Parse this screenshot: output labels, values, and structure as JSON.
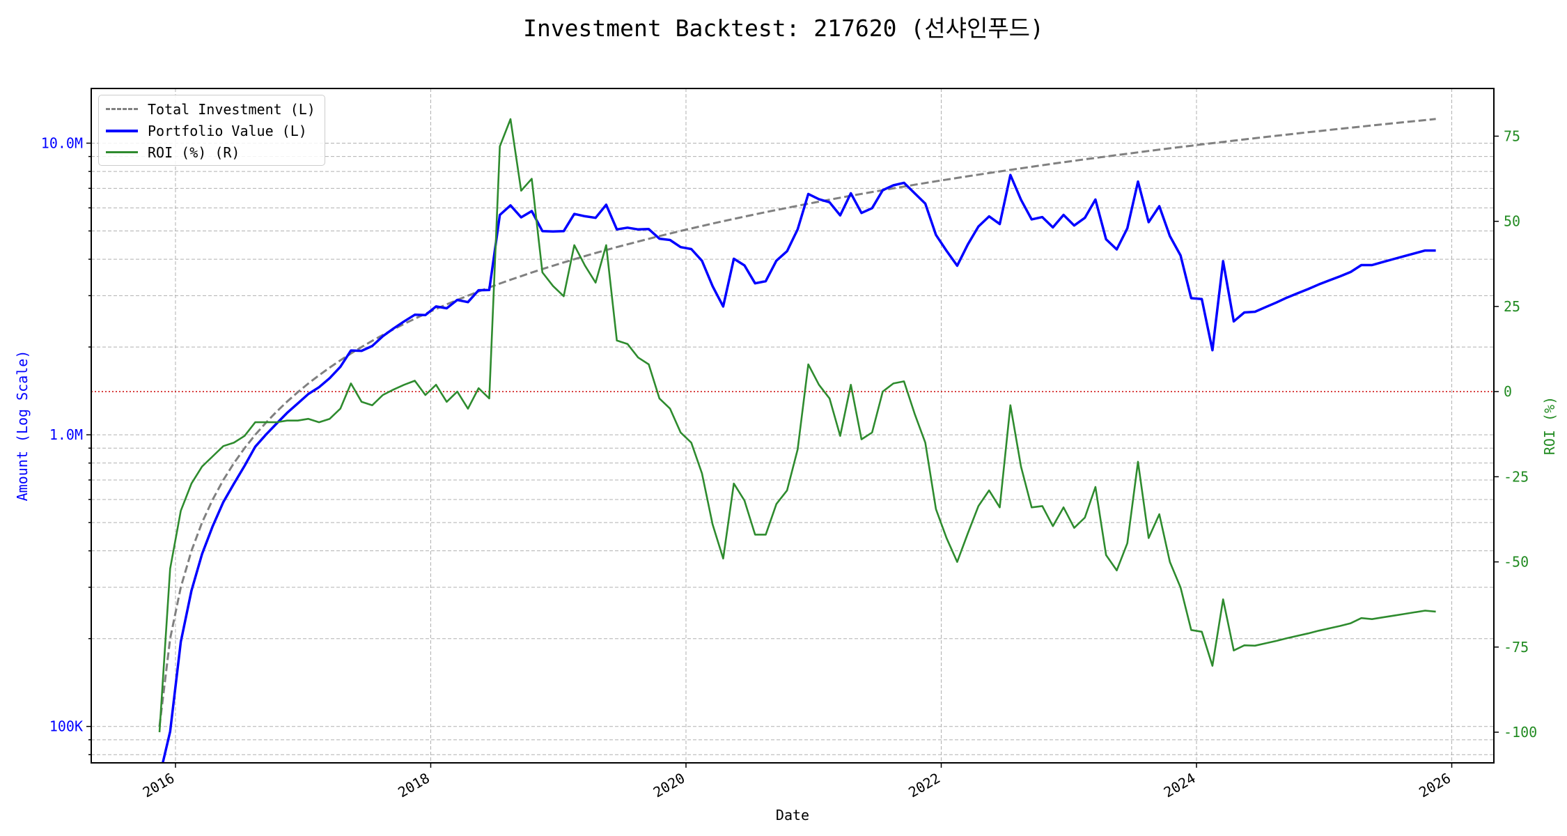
{
  "chart_data": {
    "type": "line",
    "title": "Investment Backtest: 217620 (선샤인푸드)",
    "xlabel": "Date",
    "ylabel_left": "Amount (Log Scale)",
    "ylabel_right": "ROI (%)",
    "x_start": "2015-11",
    "x_frequency": "monthly",
    "x_range_years": [
      2015.34,
      2026.33
    ],
    "x_ticks": [
      "2016",
      "2018",
      "2020",
      "2022",
      "2024",
      "2026"
    ],
    "y_left_scale": "log",
    "y_left_range": [
      75000,
      15400000
    ],
    "y_left_ticks": [
      {
        "value": 100000,
        "label": "100K"
      },
      {
        "value": 1000000,
        "label": "1.0M"
      },
      {
        "value": 10000000,
        "label": "10.0M"
      }
    ],
    "y_right_range": [
      -109,
      89
    ],
    "y_right_ticks": [
      "75",
      "50",
      "25",
      "0",
      "-25",
      "-50",
      "-75",
      "-100"
    ],
    "grid": true,
    "reference_line": {
      "axis": "right",
      "value": 0,
      "color": "#cc0000",
      "style": "dotted"
    },
    "legend_placement": "top-left",
    "series": [
      {
        "name": "Total Investment (L)",
        "axis": "left",
        "color": "#808080",
        "style": "dashed",
        "monthly_increment": 100000
      },
      {
        "name": "Portfolio Value (L)",
        "axis": "left",
        "color": "#0000ff",
        "style": "solid",
        "derived": "total_investment * (1 + roi/100)"
      },
      {
        "name": "ROI (%) (R)",
        "axis": "right",
        "color": "#2e8b2e",
        "style": "solid",
        "values": [
          -100,
          -52,
          -35,
          -27,
          -22,
          -19,
          -16,
          -15,
          -13,
          -9,
          -9,
          -9,
          -8.5,
          -8.5,
          -8,
          -9,
          -8,
          -5,
          2.4,
          -3,
          -4,
          -1,
          0.6,
          2,
          3.2,
          -1,
          2,
          -3,
          0,
          -5,
          1,
          -2,
          72,
          80,
          59,
          62.5,
          35,
          31,
          28,
          43,
          37,
          32,
          43,
          15,
          14,
          10,
          8,
          -2,
          -5,
          -12,
          -15,
          -24,
          -39,
          -49,
          -27,
          -32,
          -42,
          -42,
          -33,
          -29,
          -17,
          8,
          2,
          -2,
          -13,
          2,
          -14,
          -12,
          0,
          2.4,
          3,
          -6.5,
          -15,
          -34.5,
          -43,
          -50,
          -41.6,
          -33.6,
          -29,
          -34,
          -4,
          -22,
          -34,
          -33.6,
          -39.5,
          -34,
          -40,
          -37,
          -28,
          -48,
          -52.5,
          -44.5,
          -20.6,
          -43,
          -36,
          -50,
          -57.5,
          -70,
          -70.5,
          -80.5,
          -61,
          -76,
          -74.5,
          -74.6,
          -73.9,
          -73.2,
          -72.4,
          -71.7,
          -71,
          -70.2,
          -69.5,
          -68.8,
          -68,
          -66.5,
          -66.8,
          -66.3,
          -65.8,
          -65.3,
          -64.8,
          -64.3,
          -64.6
        ]
      }
    ]
  }
}
